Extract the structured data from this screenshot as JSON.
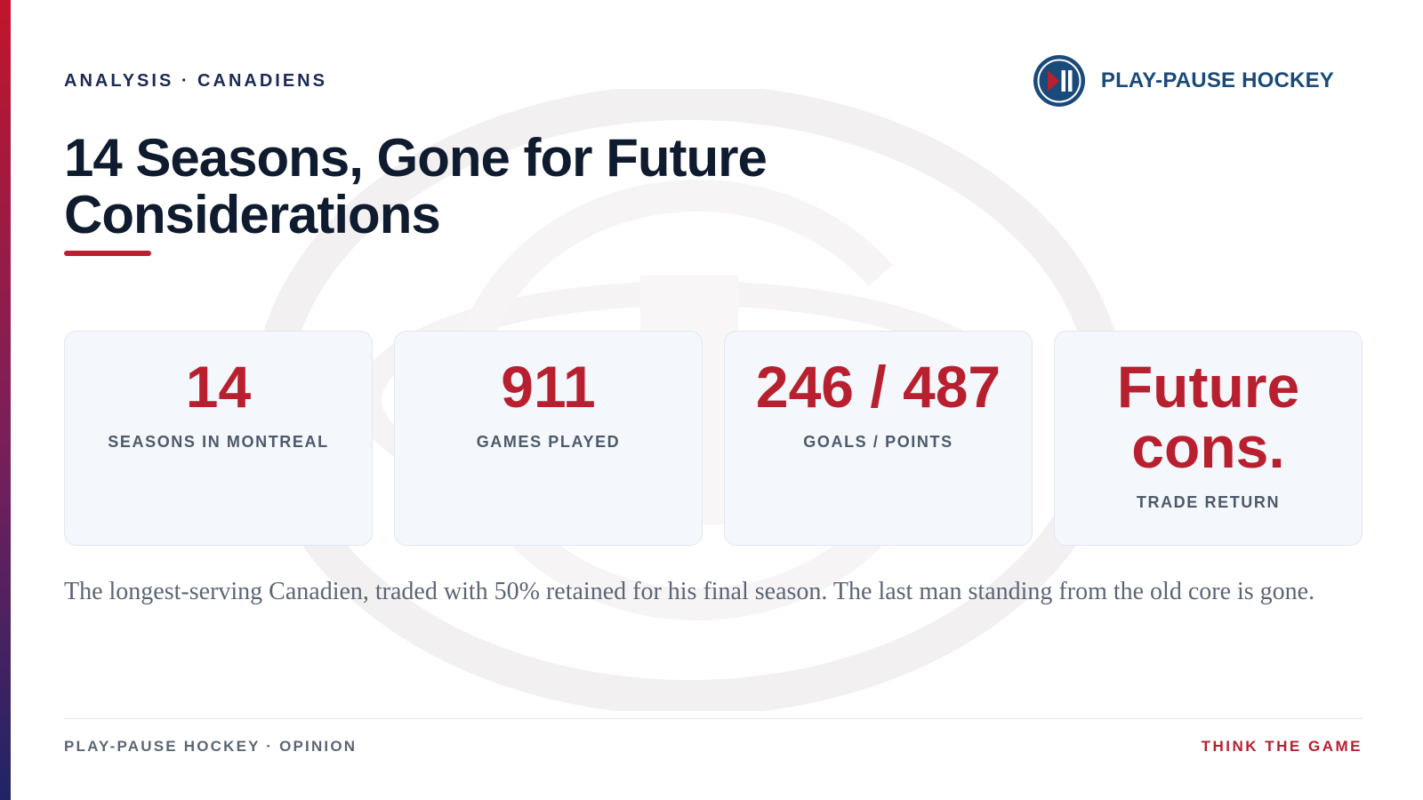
{
  "kicker": "ANALYSIS · CANADIENS",
  "brand": {
    "name": "PLAY-PAUSE HOCKEY",
    "logo_icon": "play-pause-icon",
    "logo_color": "#1a4a7a",
    "logo_accent": "#b8202f"
  },
  "title": "14 Seasons, Gone for Future Considerations",
  "stats": [
    {
      "value": "14",
      "label": "SEASONS IN MONTREAL"
    },
    {
      "value": "911",
      "label": "GAMES PLAYED"
    },
    {
      "value": "246 / 487",
      "label": "GOALS / POINTS"
    },
    {
      "value": "Future cons.",
      "label": "TRADE RETURN"
    }
  ],
  "description": "The longest-serving Canadien, traded with 50% retained for his final season. The last man standing from the old core is gone.",
  "footer": {
    "left": "PLAY-PAUSE HOCKEY · OPINION",
    "right": "THINK THE GAME"
  },
  "colors": {
    "accent_red": "#b8202f",
    "navy": "#0f1b2e",
    "brand_blue": "#1a4a7a"
  }
}
